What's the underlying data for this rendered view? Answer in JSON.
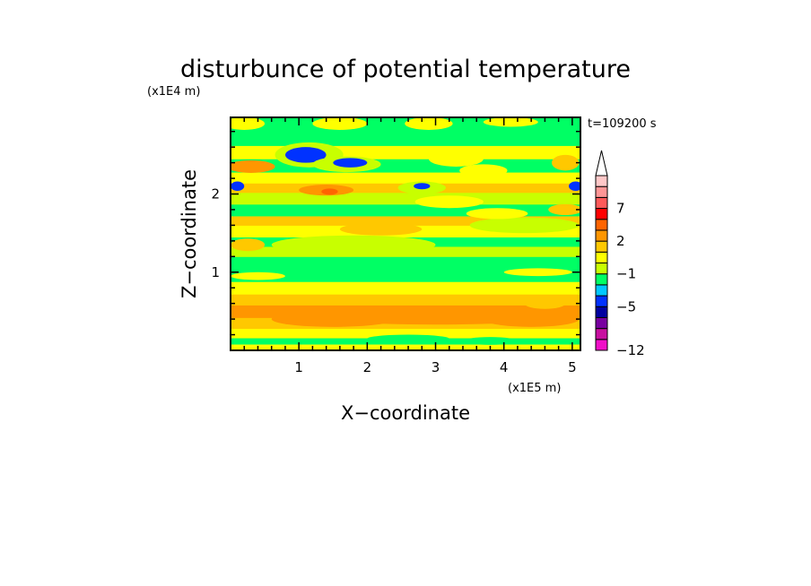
{
  "chart_data": {
    "type": "heatmap",
    "title": "disturbunce of potential temperature",
    "xlabel": "X−coordinate",
    "ylabel": "Z−coordinate",
    "x_scale_label": "(x1E5 m)",
    "y_scale_label": "(x1E4 m)",
    "time_label": "t=109200 s",
    "xlim": [
      0,
      5.12
    ],
    "ylim": [
      0,
      2.98
    ],
    "x_ticks": [
      {
        "value": 1,
        "label": "1"
      },
      {
        "value": 2,
        "label": "2"
      },
      {
        "value": 3,
        "label": "3"
      },
      {
        "value": 4,
        "label": "4"
      },
      {
        "value": 5,
        "label": "5"
      }
    ],
    "y_ticks": [
      {
        "value": 1,
        "label": "1"
      },
      {
        "value": 2,
        "label": "2"
      }
    ],
    "colorbar": {
      "levels": [
        -12,
        -10,
        -8,
        -6,
        -5,
        -4,
        -2,
        -1,
        0,
        1,
        2,
        3,
        5,
        7,
        8,
        10,
        12
      ],
      "colors": [
        "#f00fc8",
        "#c80fa0",
        "#7800a0",
        "#0000a0",
        "#0032ff",
        "#00c8ff",
        "#00ff64",
        "#c8ff00",
        "#ffff00",
        "#ffc800",
        "#ff9600",
        "#ff6400",
        "#ff0000",
        "#ff5a5a",
        "#ff9696",
        "#ffc8c8"
      ],
      "tick_labels": [
        {
          "value": -12,
          "label": "−12"
        },
        {
          "value": -5,
          "label": "−5"
        },
        {
          "value": -1,
          "label": "−1"
        },
        {
          "value": 2,
          "label": "2"
        },
        {
          "value": 7,
          "label": "7"
        }
      ],
      "extend": "max"
    },
    "bands": [
      {
        "z": [
          0.0,
          0.08
        ],
        "value": 0.5
      },
      {
        "z": [
          0.08,
          0.16
        ],
        "value": -1.5
      },
      {
        "z": [
          0.16,
          0.28
        ],
        "value": 0.5
      },
      {
        "z": [
          0.28,
          0.42
        ],
        "value": 1.5
      },
      {
        "z": [
          0.42,
          0.58
        ],
        "value": 2.5
      },
      {
        "z": [
          0.58,
          0.72
        ],
        "value": 1.5
      },
      {
        "z": [
          0.72,
          0.88
        ],
        "value": 0.5
      },
      {
        "z": [
          0.88,
          1.05
        ],
        "value": -1.5
      },
      {
        "z": [
          1.05,
          1.2
        ],
        "value": -1.5
      },
      {
        "z": [
          1.2,
          1.33
        ],
        "value": -0.5
      },
      {
        "z": [
          1.33,
          1.45
        ],
        "value": -1.5
      },
      {
        "z": [
          1.45,
          1.6
        ],
        "value": 0.5
      },
      {
        "z": [
          1.6,
          1.72
        ],
        "value": 1.5
      },
      {
        "z": [
          1.72,
          1.87
        ],
        "value": -1.5
      },
      {
        "z": [
          1.87,
          2.02
        ],
        "value": -0.5
      },
      {
        "z": [
          2.02,
          2.14
        ],
        "value": 1.5
      },
      {
        "z": [
          2.14,
          2.28
        ],
        "value": 0.5
      },
      {
        "z": [
          2.28,
          2.45
        ],
        "value": -1.5
      },
      {
        "z": [
          2.45,
          2.62
        ],
        "value": 0.5
      },
      {
        "z": [
          2.62,
          2.78
        ],
        "value": -1.5
      },
      {
        "z": [
          2.78,
          2.98
        ],
        "value": -1.5
      }
    ],
    "features": [
      {
        "x": 3.0,
        "z": 0.45,
        "rx": 2.0,
        "rz": 0.12,
        "value": 2.5
      },
      {
        "x": 1.5,
        "z": 0.4,
        "rx": 0.9,
        "rz": 0.1,
        "value": 2.5
      },
      {
        "x": 4.4,
        "z": 0.4,
        "rx": 0.7,
        "rz": 0.1,
        "value": 2.5
      },
      {
        "x": 1.8,
        "z": 1.35,
        "rx": 1.2,
        "rz": 0.12,
        "value": -0.5
      },
      {
        "x": 4.3,
        "z": 1.6,
        "rx": 0.8,
        "rz": 0.1,
        "value": -0.5
      },
      {
        "x": 0.25,
        "z": 1.35,
        "rx": 0.25,
        "rz": 0.08,
        "value": 1.5
      },
      {
        "x": 0.3,
        "z": 2.35,
        "rx": 0.35,
        "rz": 0.08,
        "value": 2.5
      },
      {
        "x": 1.4,
        "z": 2.05,
        "rx": 0.4,
        "rz": 0.07,
        "value": 2.5
      },
      {
        "x": 1.45,
        "z": 2.03,
        "rx": 0.12,
        "rz": 0.04,
        "value": 4.0
      },
      {
        "x": 2.8,
        "z": 2.08,
        "rx": 0.35,
        "rz": 0.08,
        "value": -0.5
      },
      {
        "x": 2.8,
        "z": 2.1,
        "rx": 0.12,
        "rz": 0.04,
        "value": -4.5
      },
      {
        "x": 0.1,
        "z": 2.1,
        "rx": 0.1,
        "rz": 0.06,
        "value": -4.5
      },
      {
        "x": 5.05,
        "z": 2.1,
        "rx": 0.1,
        "rz": 0.06,
        "value": -4.5
      },
      {
        "x": 1.15,
        "z": 2.5,
        "rx": 0.5,
        "rz": 0.16,
        "value": -0.5
      },
      {
        "x": 1.1,
        "z": 2.5,
        "rx": 0.3,
        "rz": 0.1,
        "value": -4.5
      },
      {
        "x": 1.7,
        "z": 2.38,
        "rx": 0.5,
        "rz": 0.1,
        "value": -0.5
      },
      {
        "x": 1.75,
        "z": 2.4,
        "rx": 0.25,
        "rz": 0.06,
        "value": -4.5
      },
      {
        "x": 3.3,
        "z": 2.45,
        "rx": 0.4,
        "rz": 0.1,
        "value": 0.5
      },
      {
        "x": 3.7,
        "z": 2.3,
        "rx": 0.35,
        "rz": 0.08,
        "value": 0.5
      },
      {
        "x": 0.2,
        "z": 2.9,
        "rx": 0.3,
        "rz": 0.08,
        "value": 0.5
      },
      {
        "x": 1.6,
        "z": 2.9,
        "rx": 0.4,
        "rz": 0.08,
        "value": 0.5
      },
      {
        "x": 2.9,
        "z": 2.9,
        "rx": 0.35,
        "rz": 0.08,
        "value": 0.5
      },
      {
        "x": 4.1,
        "z": 2.92,
        "rx": 0.4,
        "rz": 0.06,
        "value": 0.5
      },
      {
        "x": 4.9,
        "z": 2.4,
        "rx": 0.2,
        "rz": 0.1,
        "value": 1.5
      },
      {
        "x": 3.2,
        "z": 1.9,
        "rx": 0.5,
        "rz": 0.08,
        "value": 0.5
      },
      {
        "x": 2.2,
        "z": 1.55,
        "rx": 0.6,
        "rz": 0.08,
        "value": 1.5
      },
      {
        "x": 3.9,
        "z": 1.75,
        "rx": 0.45,
        "rz": 0.07,
        "value": 0.5
      },
      {
        "x": 4.9,
        "z": 1.8,
        "rx": 0.25,
        "rz": 0.07,
        "value": 1.5
      },
      {
        "x": 2.6,
        "z": 0.15,
        "rx": 0.6,
        "rz": 0.05,
        "value": -1.5
      },
      {
        "x": 3.8,
        "z": 0.12,
        "rx": 0.4,
        "rz": 0.05,
        "value": -1.5
      },
      {
        "x": 4.6,
        "z": 0.6,
        "rx": 0.3,
        "rz": 0.07,
        "value": 1.5
      },
      {
        "x": 0.4,
        "z": 0.95,
        "rx": 0.4,
        "rz": 0.05,
        "value": 0.5
      },
      {
        "x": 4.5,
        "z": 1.0,
        "rx": 0.5,
        "rz": 0.05,
        "value": 0.5
      }
    ]
  }
}
